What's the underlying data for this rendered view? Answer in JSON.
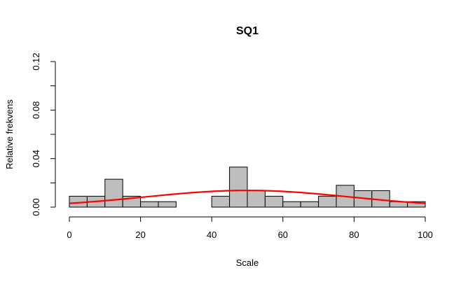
{
  "chart_data": {
    "type": "bar",
    "title": "SQ1",
    "xlabel": "Scale",
    "ylabel": "Relative frekvens",
    "xlim": [
      0,
      100
    ],
    "ylim": [
      0,
      0.12
    ],
    "x_ticks": [
      0,
      20,
      40,
      60,
      80,
      100
    ],
    "x_tick_labels": [
      "0",
      "20",
      "40",
      "60",
      "80",
      "100"
    ],
    "y_ticks": [
      0.0,
      0.04,
      0.08,
      0.12
    ],
    "y_tick_labels": [
      "0.00",
      "0.04",
      "0.08",
      "0.12"
    ],
    "grid": false,
    "bin_width": 5,
    "bins": [
      {
        "start": 0,
        "end": 5,
        "value": 0.009
      },
      {
        "start": 5,
        "end": 10,
        "value": 0.009
      },
      {
        "start": 10,
        "end": 15,
        "value": 0.023
      },
      {
        "start": 15,
        "end": 20,
        "value": 0.009
      },
      {
        "start": 20,
        "end": 25,
        "value": 0.0045
      },
      {
        "start": 25,
        "end": 30,
        "value": 0.0045
      },
      {
        "start": 30,
        "end": 35,
        "value": 0
      },
      {
        "start": 35,
        "end": 40,
        "value": 0
      },
      {
        "start": 40,
        "end": 45,
        "value": 0.009
      },
      {
        "start": 45,
        "end": 50,
        "value": 0.033
      },
      {
        "start": 50,
        "end": 55,
        "value": 0.0136
      },
      {
        "start": 55,
        "end": 60,
        "value": 0.009
      },
      {
        "start": 60,
        "end": 65,
        "value": 0.0045
      },
      {
        "start": 65,
        "end": 70,
        "value": 0.0045
      },
      {
        "start": 70,
        "end": 75,
        "value": 0.009
      },
      {
        "start": 75,
        "end": 80,
        "value": 0.018
      },
      {
        "start": 80,
        "end": 85,
        "value": 0.0136
      },
      {
        "start": 85,
        "end": 90,
        "value": 0.0136
      },
      {
        "start": 90,
        "end": 95,
        "value": 0.0045
      },
      {
        "start": 95,
        "end": 100,
        "value": 0.0045
      }
    ],
    "density_curve": {
      "distribution": "normal",
      "mean": 50,
      "sd": 29,
      "color": "#ff0000"
    },
    "bar_color": "#bebebe"
  }
}
